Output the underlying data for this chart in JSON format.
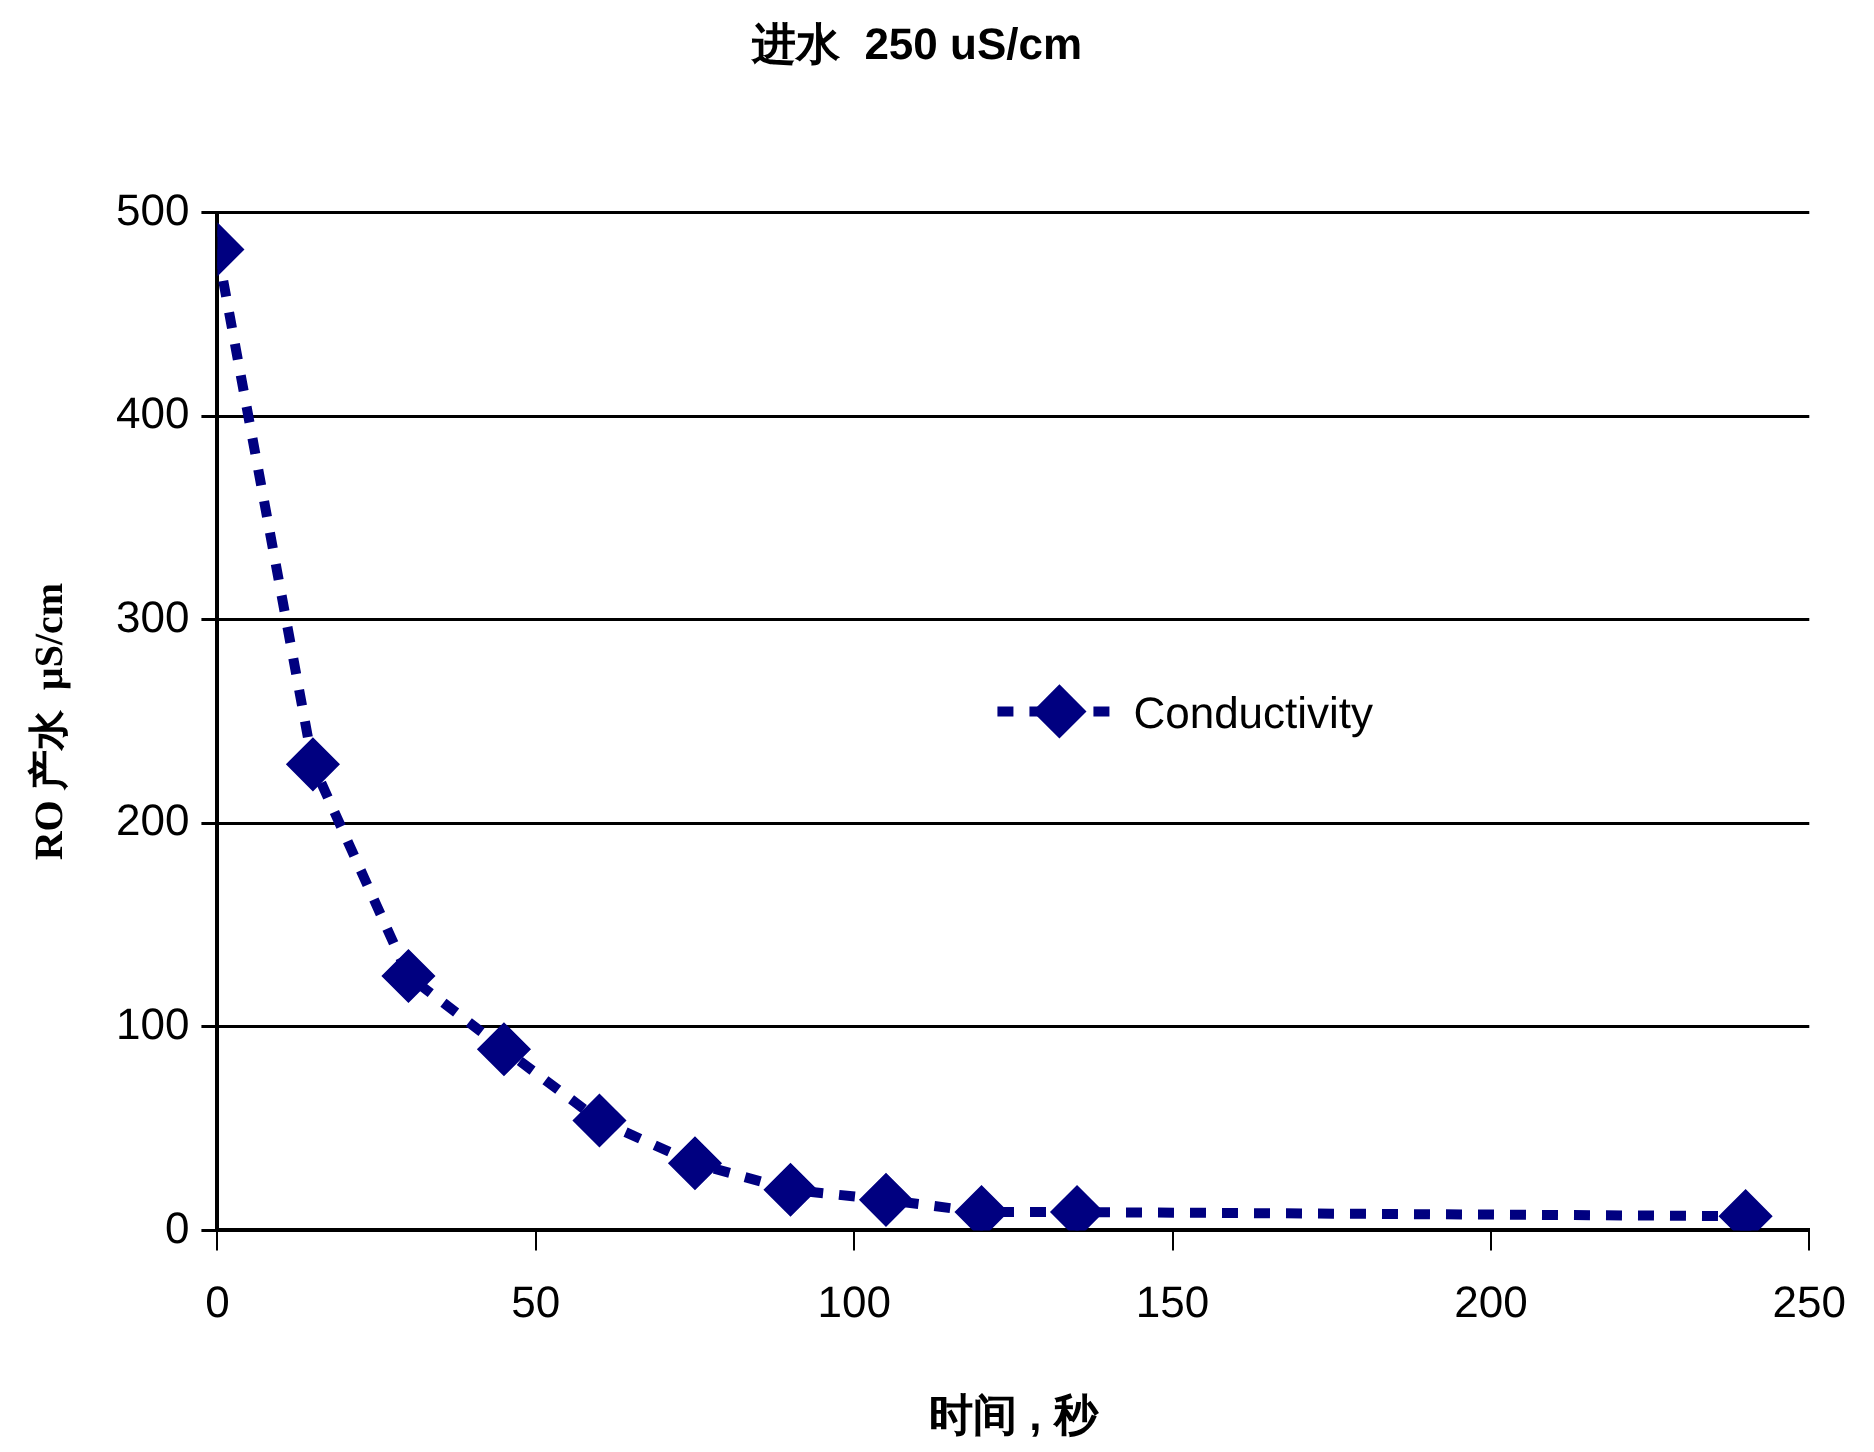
{
  "chart_data": {
    "type": "line",
    "title": "进水  250 uS/cm",
    "xlabel": "时间 , 秒",
    "ylabel": "RO 产水  µS/cm",
    "x": [
      0,
      15,
      30,
      45,
      60,
      75,
      90,
      105,
      120,
      135,
      240
    ],
    "series": [
      {
        "name": "Conductivity",
        "color": "#000080",
        "values": [
          482,
          229,
          125,
          89,
          54,
          33,
          20,
          15,
          9,
          9,
          7
        ]
      }
    ],
    "xlim": [
      0,
      250
    ],
    "xticks": [
      0,
      50,
      100,
      150,
      200,
      250
    ],
    "ylim": [
      0,
      500
    ],
    "yticks": [
      0,
      100,
      200,
      300,
      400,
      500
    ],
    "grid": "y",
    "legend": "right",
    "marker": "diamond",
    "line_style": "dashed"
  }
}
